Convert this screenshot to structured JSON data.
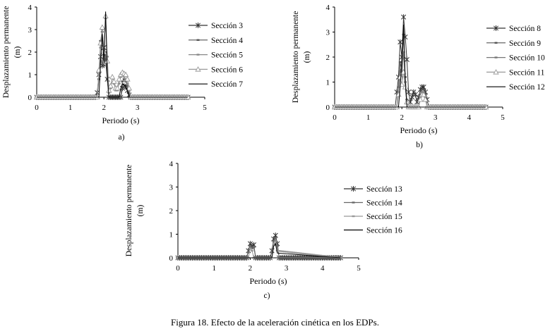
{
  "figure": {
    "caption": "Figura 18. Efecto de la aceleración cinética en los EDPs."
  },
  "chart_data": [
    {
      "type": "line",
      "panel_label": "a)",
      "xlabel": "Periodo (s)",
      "ylabel_line1": "Desplazamiento permanente",
      "ylabel_line2": "(m)",
      "xlim": [
        0,
        5
      ],
      "ylim": [
        0,
        4
      ],
      "xticks": [
        "0",
        "1",
        "2",
        "3",
        "4",
        "5"
      ],
      "yticks": [
        "0",
        "1",
        "2",
        "3",
        "4"
      ],
      "grid": false,
      "legend": "right",
      "series": [
        {
          "name": "Sección 3",
          "marker": "star",
          "color": "#333333",
          "x": [
            0,
            1.75,
            1.8,
            1.85,
            1.9,
            1.95,
            2.0,
            2.05,
            2.1,
            2.15,
            2.5,
            2.55,
            2.6,
            2.65,
            2.7,
            2.75,
            2.8,
            4.5
          ],
          "y": [
            0,
            0,
            0.2,
            1.0,
            1.8,
            1.4,
            2.2,
            1.6,
            0.8,
            0,
            0,
            0.4,
            0.5,
            0.45,
            0.3,
            0.1,
            0,
            0
          ]
        },
        {
          "name": "Sección 4",
          "marker": "dash",
          "color": "#555555",
          "x": [
            0,
            1.8,
            1.85,
            1.9,
            1.95,
            2.0,
            2.05,
            2.1,
            2.15,
            2.5,
            2.55,
            2.6,
            2.65,
            2.7,
            2.75,
            4.5
          ],
          "y": [
            0,
            0,
            0.8,
            2.5,
            2.9,
            1.4,
            2.0,
            0.8,
            0,
            0,
            0.7,
            0.8,
            0.7,
            0.5,
            0,
            0
          ]
        },
        {
          "name": "Sección 5",
          "marker": "dash",
          "color": "#888888",
          "x": [
            0,
            1.8,
            1.85,
            1.9,
            1.95,
            2.0,
            2.05,
            2.1,
            2.15,
            2.2,
            2.25,
            2.3,
            2.35,
            2.4,
            2.45,
            2.5,
            2.55,
            2.6,
            2.65,
            2.7,
            2.75,
            2.8,
            4.5
          ],
          "y": [
            0,
            0,
            1.0,
            2.2,
            3.0,
            2.1,
            3.5,
            1.8,
            0.2,
            0.4,
            0.9,
            0.6,
            0.3,
            0.3,
            0.6,
            0.9,
            1.0,
            0.9,
            0.8,
            0.6,
            0.3,
            0,
            0
          ]
        },
        {
          "name": "Sección 6",
          "marker": "triangle",
          "color": "#999999",
          "x": [
            0,
            1.8,
            1.85,
            1.9,
            1.95,
            2.0,
            2.05,
            2.1,
            2.15,
            2.2,
            2.25,
            2.3,
            2.35,
            2.4,
            2.45,
            2.5,
            2.55,
            2.6,
            2.65,
            2.7,
            2.75,
            2.8,
            4.5
          ],
          "y": [
            0,
            0,
            1.2,
            2.4,
            3.1,
            2.0,
            3.6,
            1.6,
            0.3,
            0.5,
            0.9,
            0.7,
            0.4,
            0.4,
            0.8,
            1.0,
            1.1,
            1.05,
            1.0,
            0.8,
            0.4,
            0,
            0
          ]
        },
        {
          "name": "Sección 7",
          "marker": "none",
          "color": "#000000",
          "x": [
            0,
            1.85,
            1.9,
            1.95,
            2.0,
            2.05,
            2.1,
            2.15,
            2.45,
            2.5,
            2.55,
            2.6,
            2.65,
            2.7,
            2.75,
            4.5
          ],
          "y": [
            0,
            0,
            1.5,
            2.8,
            1.6,
            3.8,
            1.0,
            0,
            0,
            0.4,
            0.6,
            0.55,
            0.5,
            0.3,
            0,
            0
          ]
        }
      ]
    },
    {
      "type": "line",
      "panel_label": "b)",
      "xlabel": "Periodo (s)",
      "ylabel_line1": "Desplazamiento permanente",
      "ylabel_line2": "(m)",
      "xlim": [
        0,
        5
      ],
      "ylim": [
        0,
        4
      ],
      "xticks": [
        "0",
        "1",
        "2",
        "3",
        "4",
        "5"
      ],
      "yticks": [
        "0",
        "1",
        "2",
        "3",
        "4"
      ],
      "grid": false,
      "legend": "right",
      "series": [
        {
          "name": "Sección 8",
          "marker": "star",
          "color": "#333333",
          "x": [
            0,
            1.8,
            1.85,
            1.9,
            1.95,
            2.0,
            2.05,
            2.1,
            2.15,
            2.2,
            2.25,
            2.3,
            2.35,
            2.4,
            2.45,
            2.5,
            2.55,
            2.6,
            2.65,
            2.7,
            2.75,
            2.8,
            4.5
          ],
          "y": [
            0,
            0,
            0.6,
            1.2,
            2.6,
            2.0,
            3.6,
            2.8,
            1.9,
            0.6,
            0.2,
            0.4,
            0.6,
            0.5,
            0.2,
            0.4,
            0.7,
            0.8,
            0.8,
            0.6,
            0.3,
            0,
            0
          ]
        },
        {
          "name": "Sección 9",
          "marker": "dash",
          "color": "#555555",
          "x": [
            0,
            1.85,
            1.9,
            1.95,
            2.0,
            2.05,
            2.1,
            2.15,
            2.2,
            2.5,
            2.55,
            2.6,
            2.65,
            2.7,
            2.75,
            4.5
          ],
          "y": [
            0,
            0,
            0.8,
            1.8,
            1.4,
            2.9,
            1.2,
            0.3,
            0,
            0,
            0.5,
            0.7,
            0.7,
            0.5,
            0,
            0
          ]
        },
        {
          "name": "Sección 10",
          "marker": "dash",
          "color": "#777777",
          "x": [
            0,
            1.85,
            1.9,
            1.95,
            2.0,
            2.05,
            2.1,
            2.15,
            2.2,
            2.5,
            2.55,
            2.6,
            2.65,
            2.7,
            2.75,
            4.5
          ],
          "y": [
            0,
            0,
            0.6,
            1.5,
            1.2,
            2.2,
            1.0,
            0.2,
            0,
            0,
            0.4,
            0.6,
            0.6,
            0.4,
            0,
            0
          ]
        },
        {
          "name": "Sección 11",
          "marker": "triangle",
          "color": "#999999",
          "x": [
            0,
            1.85,
            1.9,
            1.95,
            2.0,
            2.05,
            2.1,
            2.15,
            2.2,
            2.5,
            2.55,
            2.6,
            2.65,
            2.7,
            2.75,
            4.5
          ],
          "y": [
            0,
            0,
            0.5,
            1.2,
            0.9,
            1.4,
            0.8,
            0.2,
            0,
            0,
            0.3,
            0.5,
            0.5,
            0.3,
            0,
            0
          ]
        },
        {
          "name": "Sección 12",
          "marker": "none",
          "color": "#000000",
          "x": [
            0,
            1.9,
            1.95,
            2.0,
            2.05,
            2.1,
            2.15,
            4.5
          ],
          "y": [
            0,
            0,
            0.8,
            2.0,
            3.3,
            1.0,
            0,
            0
          ]
        }
      ]
    },
    {
      "type": "line",
      "panel_label": "c)",
      "xlabel": "Periodo (s)",
      "ylabel_line1": "Desplazamiento permanente",
      "ylabel_line2": "(m)",
      "xlim": [
        0,
        5
      ],
      "ylim": [
        0,
        4
      ],
      "xticks": [
        "0",
        "1",
        "2",
        "3",
        "4",
        "5"
      ],
      "yticks": [
        "0",
        "1",
        "2",
        "3",
        "4"
      ],
      "grid": false,
      "legend": "right",
      "series": [
        {
          "name": "Sección 13",
          "marker": "star",
          "color": "#333333",
          "x": [
            0,
            1.9,
            1.95,
            2.0,
            2.05,
            2.1,
            2.15,
            2.55,
            2.6,
            2.65,
            2.7,
            2.75,
            2.8,
            4.5
          ],
          "y": [
            0,
            0,
            0.3,
            0.6,
            0.5,
            0.55,
            0,
            0,
            0.3,
            0.8,
            0.95,
            0.6,
            0,
            0
          ]
        },
        {
          "name": "Sección 14",
          "marker": "dash",
          "color": "#666666",
          "x": [
            0,
            1.9,
            1.95,
            2.0,
            2.05,
            2.1,
            2.15,
            2.55,
            2.6,
            2.65,
            2.7,
            2.75,
            2.8,
            4.5
          ],
          "y": [
            0,
            0,
            0.25,
            0.5,
            0.4,
            0.45,
            0,
            0,
            0.25,
            0.7,
            0.85,
            0.5,
            0,
            0
          ]
        },
        {
          "name": "Sección 15",
          "marker": "dash",
          "color": "#999999",
          "x": [
            0,
            1.95,
            2.0,
            2.05,
            2.1,
            2.6,
            2.65,
            2.7,
            2.75,
            4.5
          ],
          "y": [
            0,
            0,
            0.4,
            0.3,
            0,
            0,
            0.6,
            0.7,
            0.3,
            0
          ]
        },
        {
          "name": "Sección 16",
          "marker": "none",
          "color": "#000000",
          "x": [
            0,
            2.6,
            2.65,
            2.7,
            2.75,
            4.5
          ],
          "y": [
            0,
            0,
            0.5,
            0.6,
            0.2,
            0
          ]
        }
      ]
    }
  ]
}
